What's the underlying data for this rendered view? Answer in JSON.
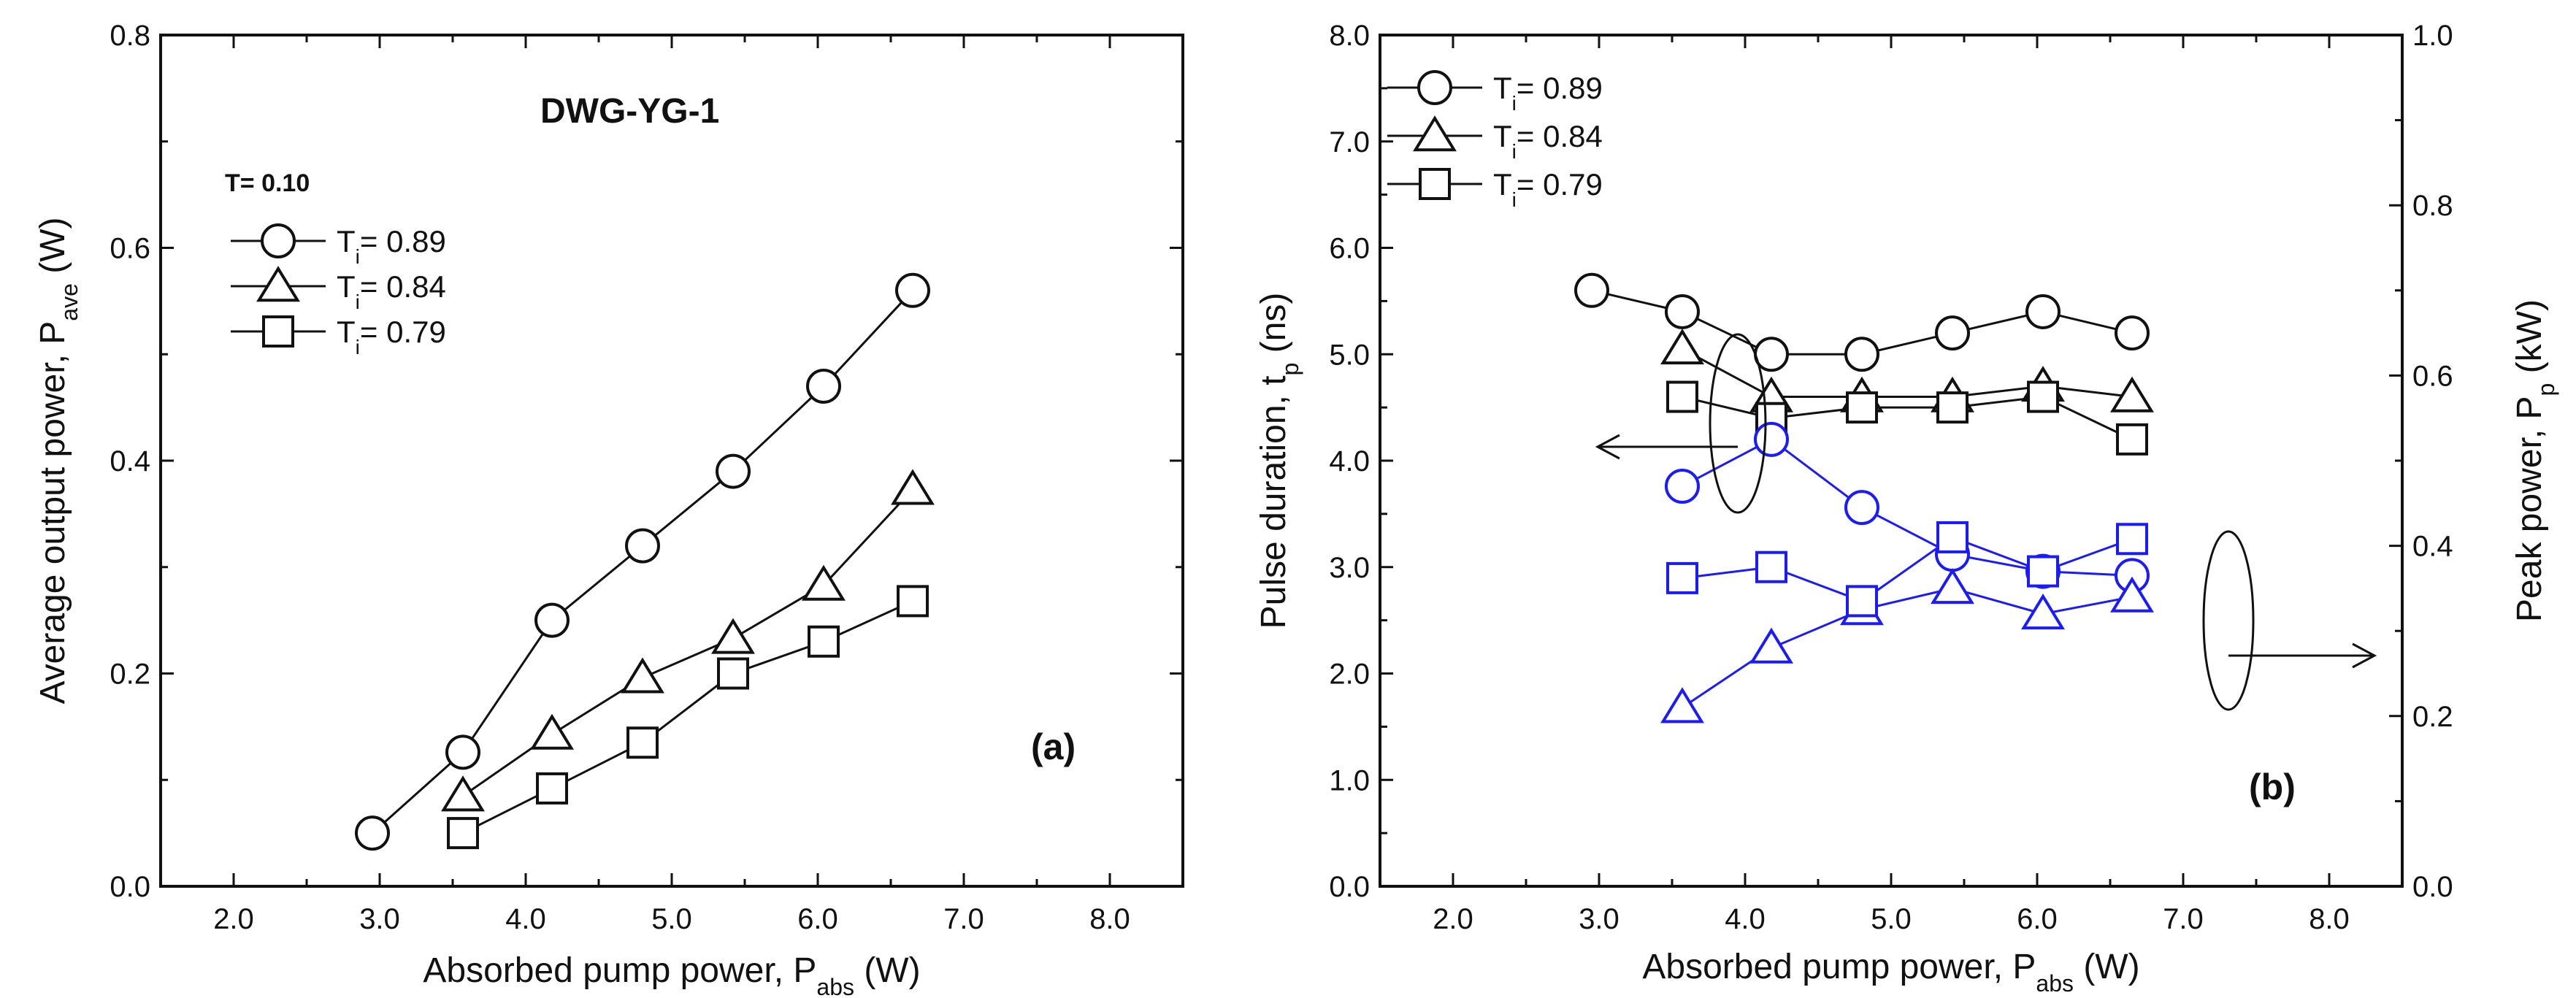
{
  "colors": {
    "black_series": "#111111",
    "blue_series": "#1a1aff",
    "background": "#ffffff"
  },
  "chart_data": [
    {
      "type": "line",
      "panel_label": "(a)",
      "annotation": "DWG-YG-1",
      "legend_title": "T= 0.10",
      "xlabel_main": "Absorbed pump power, P",
      "xlabel_sub": "abs",
      "xlabel_unit": " (W)",
      "ylabel_main": "Average output power, P",
      "ylabel_sub": "ave",
      "ylabel_unit": " (W)",
      "xlim": [
        1.5,
        8.5
      ],
      "ylim": [
        0.0,
        0.8
      ],
      "xticks": [
        2.0,
        3.0,
        4.0,
        5.0,
        6.0,
        7.0,
        8.0
      ],
      "xtick_labels": [
        "2.0",
        "3.0",
        "4.0",
        "5.0",
        "6.0",
        "7.0",
        "8.0"
      ],
      "yticks": [
        0.0,
        0.2,
        0.4,
        0.6,
        0.8
      ],
      "ytick_labels": [
        "0.0",
        "0.2",
        "0.4",
        "0.6",
        "0.8"
      ],
      "series": [
        {
          "name": "T = 0.89",
          "legend_main": "T",
          "legend_sub": "i",
          "legend_rest": "= 0.89",
          "marker": "circle",
          "x": [
            2.95,
            3.57,
            4.18,
            4.8,
            5.42,
            6.04,
            6.65
          ],
          "y": [
            0.05,
            0.126,
            0.25,
            0.32,
            0.39,
            0.47,
            0.56
          ]
        },
        {
          "name": "T = 0.84",
          "legend_main": "T",
          "legend_sub": "i",
          "legend_rest": "= 0.84",
          "marker": "triangle",
          "x": [
            3.57,
            4.18,
            4.8,
            5.42,
            6.04,
            6.65
          ],
          "y": [
            0.085,
            0.143,
            0.196,
            0.233,
            0.283,
            0.373
          ]
        },
        {
          "name": "T = 0.79",
          "legend_main": "T",
          "legend_sub": "i",
          "legend_rest": "= 0.79",
          "marker": "square",
          "x": [
            3.57,
            4.18,
            4.8,
            5.42,
            6.04,
            6.65
          ],
          "y": [
            0.05,
            0.092,
            0.135,
            0.2,
            0.23,
            0.268
          ]
        }
      ]
    },
    {
      "type": "line",
      "panel_label": "(b)",
      "xlabel_main": "Absorbed pump power, P",
      "xlabel_sub": "abs",
      "xlabel_unit": " (W)",
      "ylabel_main": "Pulse duration, t",
      "ylabel_sub": "p",
      "ylabel_unit": " (ns)",
      "y2label_main": "Peak power, P",
      "y2label_sub": "p",
      "y2label_unit": " (kW)",
      "xlim": [
        1.5,
        8.5
      ],
      "ylim": [
        0.0,
        8.0
      ],
      "y2lim": [
        0.0,
        1.0
      ],
      "xticks": [
        2.0,
        3.0,
        4.0,
        5.0,
        6.0,
        7.0,
        8.0
      ],
      "xtick_labels": [
        "2.0",
        "3.0",
        "4.0",
        "5.0",
        "6.0",
        "7.0",
        "8.0"
      ],
      "yticks": [
        0.0,
        1.0,
        2.0,
        3.0,
        4.0,
        5.0,
        6.0,
        7.0,
        8.0
      ],
      "ytick_labels": [
        "0.0",
        "1.0",
        "2.0",
        "3.0",
        "4.0",
        "5.0",
        "6.0",
        "7.0",
        "8.0"
      ],
      "y2ticks": [
        0.0,
        0.2,
        0.4,
        0.6,
        0.8,
        1.0
      ],
      "y2tick_labels": [
        "0.0",
        "0.2",
        "0.4",
        "0.6",
        "0.8",
        "1.0"
      ],
      "series": [
        {
          "name": "T = 0.89",
          "legend_main": "T",
          "legend_sub": "i",
          "legend_rest": "= 0.89",
          "marker": "circle",
          "axis": "left",
          "x": [
            2.95,
            3.57,
            4.18,
            4.8,
            5.42,
            6.04,
            6.65
          ],
          "y": [
            5.6,
            5.4,
            5.0,
            5.0,
            5.2,
            5.4,
            5.2
          ]
        },
        {
          "name": "T = 0.84",
          "legend_main": "T",
          "legend_sub": "i",
          "legend_rest": "= 0.84",
          "marker": "triangle",
          "axis": "left",
          "x": [
            3.57,
            4.18,
            4.8,
            5.42,
            6.04,
            6.65
          ],
          "y": [
            5.05,
            4.6,
            4.6,
            4.6,
            4.7,
            4.6
          ]
        },
        {
          "name": "T = 0.79",
          "legend_main": "T",
          "legend_sub": "i",
          "legend_rest": "= 0.79",
          "marker": "square",
          "axis": "left",
          "x": [
            3.57,
            4.18,
            4.8,
            5.42,
            6.04,
            6.65
          ],
          "y": [
            4.6,
            4.4,
            4.5,
            4.5,
            4.6,
            4.2
          ]
        },
        {
          "name": "Peak power T = 0.89",
          "marker": "circle",
          "axis": "right",
          "x": [
            3.57,
            4.18,
            4.8,
            5.42,
            6.04,
            6.65
          ],
          "y": [
            0.47,
            0.525,
            0.445,
            0.39,
            0.37,
            0.365
          ]
        },
        {
          "name": "Peak power T = 0.84",
          "marker": "triangle",
          "axis": "right",
          "x": [
            3.57,
            4.18,
            4.8,
            5.42,
            6.04,
            6.65
          ],
          "y": [
            0.21,
            0.28,
            0.325,
            0.35,
            0.32,
            0.34
          ]
        },
        {
          "name": "Peak power T = 0.79",
          "marker": "square",
          "axis": "right",
          "x": [
            3.57,
            4.18,
            4.8,
            5.42,
            6.04,
            6.65
          ],
          "y": [
            0.362,
            0.375,
            0.335,
            0.41,
            0.37,
            0.408
          ]
        }
      ]
    }
  ]
}
